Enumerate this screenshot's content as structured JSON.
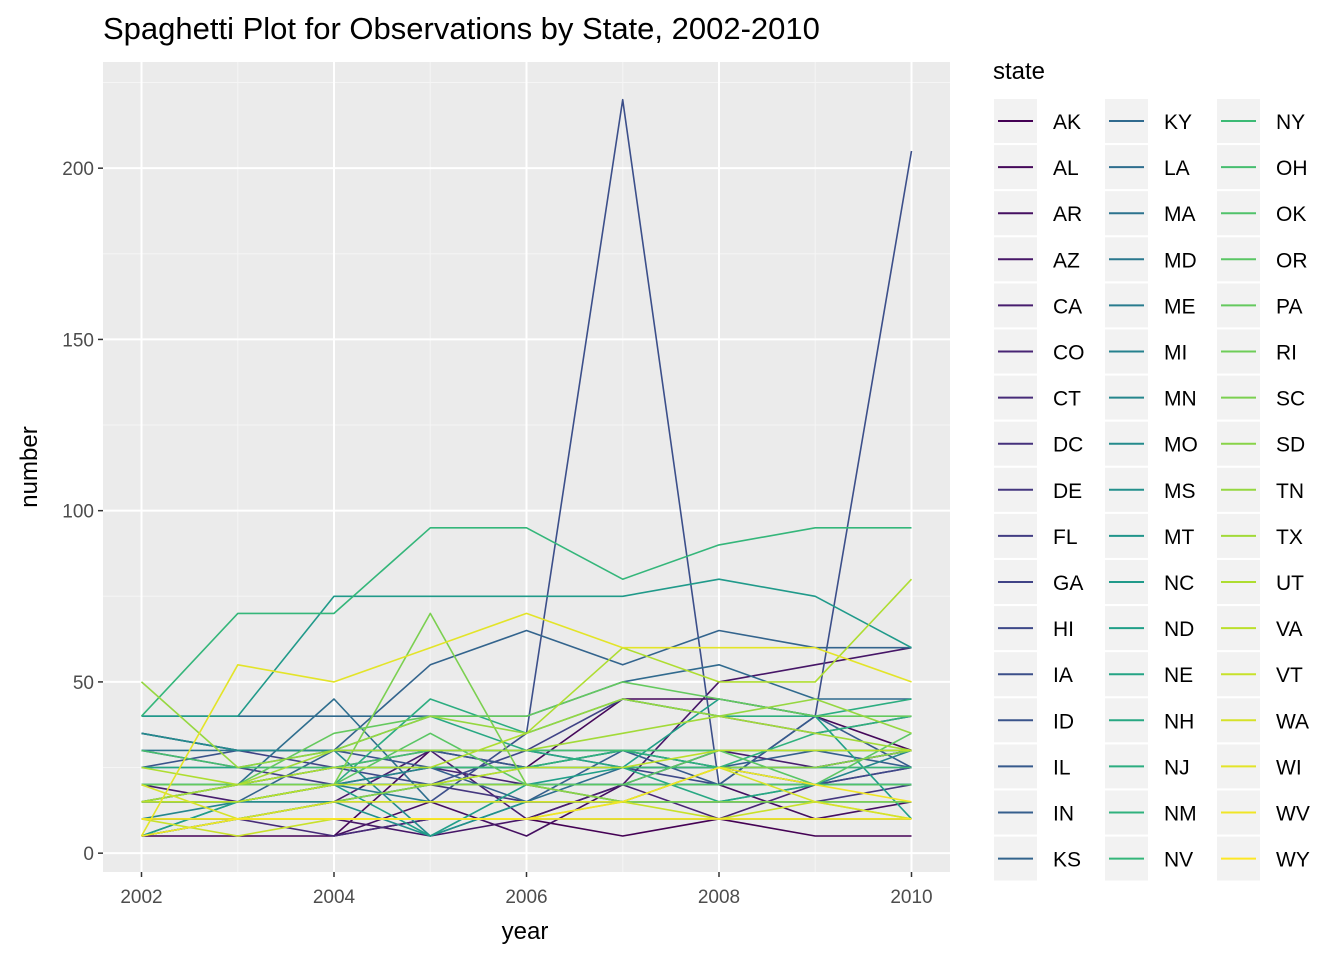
{
  "chart_data": {
    "type": "line",
    "title": "Spaghetti Plot for Observations by State, 2002-2010",
    "xlabel": "year",
    "ylabel": "number",
    "xlim": [
      2001.6,
      2010.4
    ],
    "ylim": [
      -5.5,
      231
    ],
    "x_ticks": [
      "2002",
      "2004",
      "2006",
      "2008",
      "2010"
    ],
    "y_ticks": [
      "0",
      "50",
      "100",
      "150",
      "200"
    ],
    "legend_title": "state",
    "legend_position": "right",
    "grid": true,
    "colormap": "viridis",
    "x": [
      2002,
      2003,
      2004,
      2005,
      2006,
      2007,
      2008,
      2009,
      2010
    ],
    "series": [
      {
        "name": "AK",
        "values": [
          5,
          5,
          5,
          10,
          10,
          5,
          10,
          5,
          5
        ]
      },
      {
        "name": "AL",
        "values": [
          null,
          null,
          5,
          30,
          25,
          45,
          45,
          40,
          30
        ]
      },
      {
        "name": "AR",
        "values": [
          null,
          null,
          5,
          15,
          5,
          20,
          20,
          10,
          15
        ]
      },
      {
        "name": "AZ",
        "values": [
          10,
          10,
          10,
          5,
          10,
          20,
          50,
          55,
          60
        ]
      },
      {
        "name": "CA",
        "values": [
          20,
          15,
          15,
          30,
          10,
          20,
          30,
          25,
          30
        ]
      },
      {
        "name": "CO",
        "values": [
          15,
          15,
          20,
          25,
          20,
          20,
          10,
          20,
          25
        ]
      },
      {
        "name": "CT",
        "values": [
          10,
          10,
          5,
          10,
          10,
          10,
          10,
          10,
          10
        ]
      },
      {
        "name": "DC",
        "values": [
          null,
          null,
          20,
          20,
          20,
          15,
          25,
          25,
          30
        ]
      },
      {
        "name": "DE",
        "values": [
          5,
          10,
          15,
          20,
          15,
          15,
          15,
          15,
          20
        ]
      },
      {
        "name": "FL",
        "values": [
          30,
          25,
          20,
          20,
          20,
          20,
          20,
          20,
          20
        ]
      },
      {
        "name": "GA",
        "values": [
          35,
          30,
          25,
          30,
          30,
          45,
          40,
          35,
          40
        ]
      },
      {
        "name": "HI",
        "values": [
          15,
          20,
          25,
          20,
          30,
          25,
          20,
          20,
          25
        ]
      },
      {
        "name": "IA",
        "values": [
          5,
          10,
          15,
          15,
          35,
          220,
          20,
          40,
          205
        ]
      },
      {
        "name": "ID",
        "values": [
          25,
          30,
          30,
          25,
          25,
          25,
          25,
          25,
          30
        ]
      },
      {
        "name": "IL",
        "values": [
          35,
          30,
          30,
          30,
          25,
          30,
          20,
          40,
          25
        ]
      },
      {
        "name": "IN",
        "values": [
          20,
          20,
          25,
          25,
          15,
          30,
          25,
          30,
          25
        ]
      },
      {
        "name": "KS",
        "values": [
          15,
          15,
          30,
          55,
          65,
          55,
          65,
          60,
          60
        ]
      },
      {
        "name": "KY",
        "values": [
          40,
          40,
          40,
          40,
          40,
          50,
          55,
          45,
          45
        ]
      },
      {
        "name": "LA",
        "values": [
          15,
          20,
          45,
          15,
          15,
          25,
          25,
          20,
          20
        ]
      },
      {
        "name": "MA",
        "values": [
          30,
          30,
          30,
          30,
          30,
          30,
          30,
          30,
          30
        ]
      },
      {
        "name": "MD",
        "values": [
          20,
          20,
          20,
          20,
          20,
          20,
          20,
          20,
          20
        ]
      },
      {
        "name": "ME",
        "values": [
          5,
          15,
          20,
          15,
          15,
          15,
          15,
          15,
          15
        ]
      },
      {
        "name": "MI",
        "values": [
          25,
          25,
          25,
          25,
          25,
          25,
          25,
          25,
          25
        ]
      },
      {
        "name": "MN",
        "values": [
          10,
          15,
          20,
          25,
          25,
          30,
          25,
          20,
          30
        ]
      },
      {
        "name": "MO",
        "values": [
          35,
          30,
          30,
          5,
          15,
          15,
          15,
          20,
          20
        ]
      },
      {
        "name": "MS",
        "values": [
          15,
          15,
          15,
          5,
          15,
          15,
          15,
          15,
          15
        ]
      },
      {
        "name": "MT",
        "values": [
          20,
          20,
          20,
          20,
          20,
          20,
          20,
          20,
          20
        ]
      },
      {
        "name": "NC",
        "values": [
          40,
          40,
          75,
          75,
          75,
          75,
          80,
          75,
          60
        ]
      },
      {
        "name": "ND",
        "values": [
          5,
          15,
          20,
          5,
          20,
          25,
          45,
          40,
          10
        ]
      },
      {
        "name": "NE",
        "values": [
          20,
          20,
          20,
          20,
          20,
          20,
          20,
          20,
          20
        ]
      },
      {
        "name": "NH",
        "values": [
          25,
          25,
          30,
          40,
          30,
          25,
          15,
          20,
          20
        ]
      },
      {
        "name": "NJ",
        "values": [
          15,
          15,
          20,
          45,
          35,
          45,
          40,
          40,
          45
        ]
      },
      {
        "name": "NM",
        "values": [
          5,
          10,
          15,
          20,
          25,
          30,
          25,
          35,
          40
        ]
      },
      {
        "name": "NV",
        "values": [
          40,
          70,
          70,
          95,
          95,
          80,
          90,
          95,
          95
        ]
      },
      {
        "name": "NY",
        "values": [
          20,
          20,
          25,
          25,
          25,
          25,
          25,
          25,
          25
        ]
      },
      {
        "name": "OH",
        "values": [
          30,
          25,
          25,
          30,
          30,
          30,
          30,
          30,
          30
        ]
      },
      {
        "name": "OK",
        "values": [
          20,
          20,
          20,
          20,
          20,
          20,
          20,
          20,
          20
        ]
      },
      {
        "name": "OR",
        "values": [
          15,
          15,
          20,
          35,
          20,
          20,
          30,
          20,
          35
        ]
      },
      {
        "name": "PA",
        "values": [
          20,
          20,
          35,
          40,
          40,
          50,
          45,
          40,
          40
        ]
      },
      {
        "name": "RI",
        "values": [
          10,
          10,
          10,
          10,
          10,
          10,
          10,
          10,
          10
        ]
      },
      {
        "name": "SC",
        "values": [
          15,
          20,
          20,
          70,
          20,
          15,
          15,
          15,
          15
        ]
      },
      {
        "name": "SD",
        "values": [
          5,
          10,
          15,
          20,
          20,
          15,
          25,
          25,
          30
        ]
      },
      {
        "name": "TN",
        "values": [
          50,
          25,
          30,
          40,
          35,
          45,
          40,
          45,
          35
        ]
      },
      {
        "name": "TX",
        "values": [
          15,
          20,
          30,
          30,
          30,
          35,
          40,
          35,
          30
        ]
      },
      {
        "name": "UT",
        "values": [
          25,
          20,
          25,
          25,
          35,
          60,
          50,
          50,
          80
        ]
      },
      {
        "name": "VA",
        "values": [
          15,
          15,
          20,
          20,
          25,
          25,
          30,
          30,
          30
        ]
      },
      {
        "name": "VT",
        "values": [
          10,
          5,
          10,
          10,
          10,
          15,
          10,
          15,
          10
        ]
      },
      {
        "name": "WA",
        "values": [
          20,
          10,
          15,
          15,
          15,
          15,
          25,
          15,
          10
        ]
      },
      {
        "name": "WI",
        "values": [
          5,
          55,
          50,
          60,
          70,
          60,
          60,
          60,
          50
        ]
      },
      {
        "name": "WV",
        "values": [
          5,
          10,
          10,
          10,
          10,
          15,
          25,
          20,
          15
        ]
      },
      {
        "name": "WY",
        "values": [
          10,
          10,
          10,
          10,
          10,
          10,
          10,
          10,
          10
        ]
      }
    ]
  }
}
